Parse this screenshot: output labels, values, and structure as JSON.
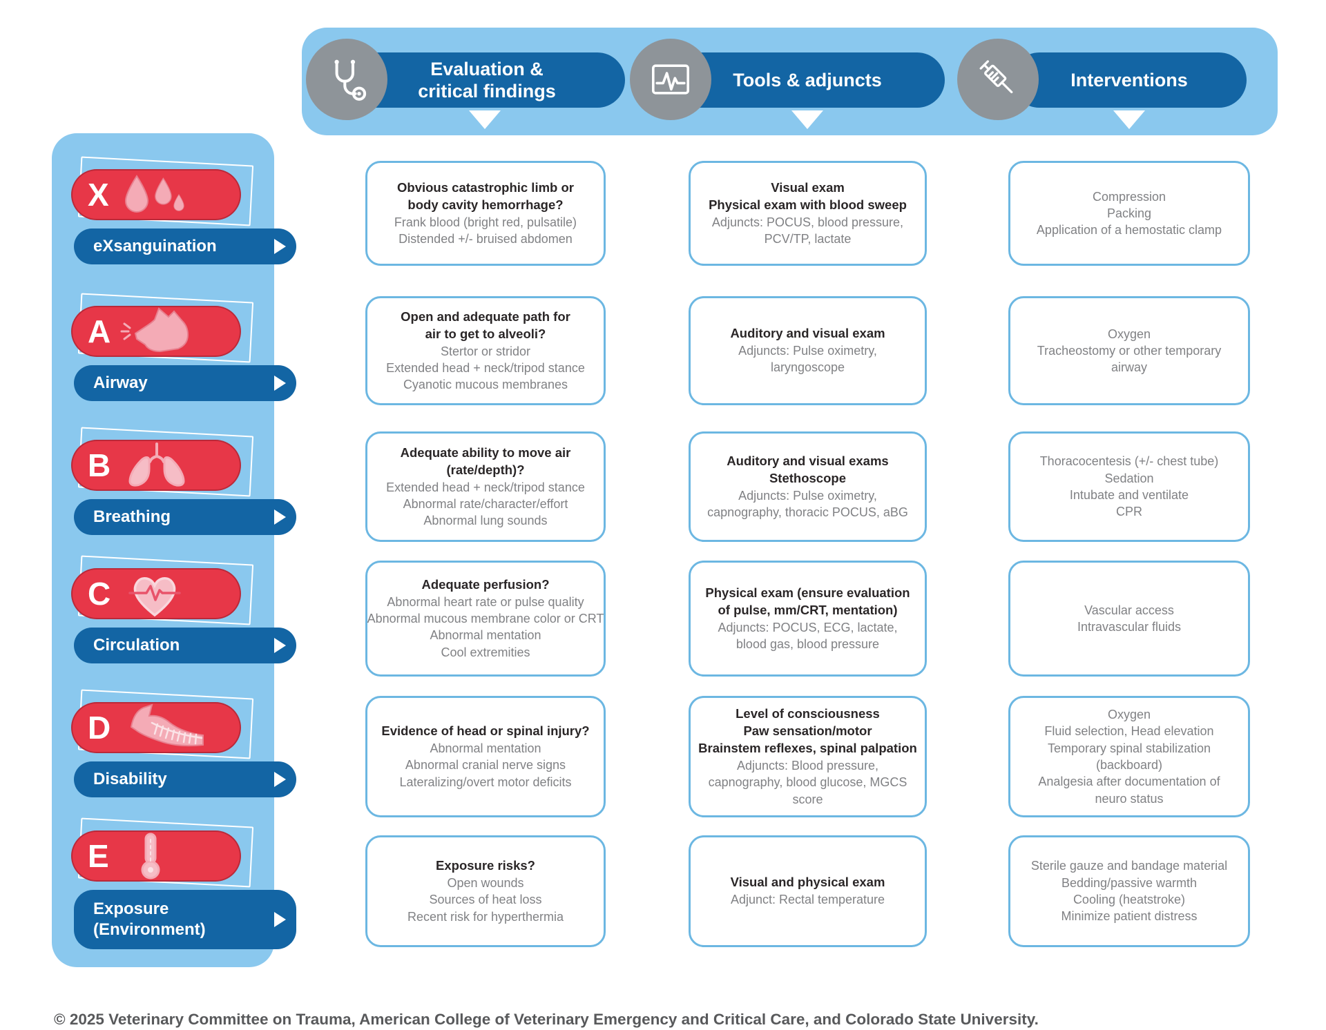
{
  "colors": {
    "light_blue": "#8AC8EE",
    "dark_blue": "#1365A4",
    "red": "#E73748",
    "pink": "#F4ABB6",
    "gray_circle": "#8E9499",
    "box_border": "#6CB7E2",
    "dark_text": "#2A2627",
    "gray_text": "#808184",
    "footer_text": "#58595B"
  },
  "header": {
    "columns": [
      {
        "icon": "stethoscope-icon",
        "label_lines": [
          "Evaluation &",
          "critical findings"
        ]
      },
      {
        "icon": "ecg-monitor-icon",
        "label_lines": [
          "Tools & adjuncts"
        ]
      },
      {
        "icon": "syringe-icon",
        "label_lines": [
          "Interventions"
        ]
      }
    ]
  },
  "sidebar": {
    "items": [
      {
        "letter": "X",
        "icon": "blood-drops-icon",
        "label_lines": [
          "eXsanguination"
        ]
      },
      {
        "letter": "A",
        "icon": "dog-bark-icon",
        "label_lines": [
          "Airway"
        ]
      },
      {
        "letter": "B",
        "icon": "lungs-icon",
        "label_lines": [
          "Breathing"
        ]
      },
      {
        "letter": "C",
        "icon": "heart-ecg-icon",
        "label_lines": [
          "Circulation"
        ]
      },
      {
        "letter": "D",
        "icon": "dog-spine-icon",
        "label_lines": [
          "Disability"
        ]
      },
      {
        "letter": "E",
        "icon": "thermometer-icon",
        "label_lines": [
          "Exposure",
          "(Environment)"
        ]
      }
    ]
  },
  "grid": {
    "rows": [
      {
        "key": "X",
        "cells": [
          {
            "bold": [
              "Obvious catastrophic limb or",
              "body cavity hemorrhage?"
            ],
            "gray": [
              "Frank blood (bright red, pulsatile)",
              "Distended +/- bruised abdomen"
            ]
          },
          {
            "bold": [
              "Visual exam",
              "Physical exam with blood sweep"
            ],
            "gray": [
              "Adjuncts: POCUS, blood pressure,",
              "PCV/TP, lactate"
            ]
          },
          {
            "bold": [],
            "gray": [
              "Compression",
              "Packing",
              "Application of a hemostatic clamp"
            ]
          }
        ]
      },
      {
        "key": "A",
        "cells": [
          {
            "bold": [
              "Open and adequate path for",
              "air to get to alveoli?"
            ],
            "gray": [
              "Stertor or stridor",
              "Extended head + neck/tripod stance",
              "Cyanotic mucous membranes"
            ]
          },
          {
            "bold": [
              "Auditory and visual exam"
            ],
            "gray": [
              "Adjuncts: Pulse oximetry,",
              "laryngoscope"
            ]
          },
          {
            "bold": [],
            "gray": [
              "Oxygen",
              "Tracheostomy or other temporary",
              "airway"
            ]
          }
        ]
      },
      {
        "key": "B",
        "cells": [
          {
            "bold": [
              "Adequate ability to move air",
              "(rate/depth)?"
            ],
            "gray": [
              "Extended head + neck/tripod stance",
              "Abnormal rate/character/effort",
              "Abnormal lung sounds"
            ]
          },
          {
            "bold": [
              "Auditory and visual exams",
              "Stethoscope"
            ],
            "gray": [
              "Adjuncts: Pulse oximetry,",
              "capnography, thoracic POCUS, aBG"
            ]
          },
          {
            "bold": [],
            "gray": [
              "Thoracocentesis (+/- chest tube)",
              "Sedation",
              "Intubate and ventilate",
              "CPR"
            ]
          }
        ]
      },
      {
        "key": "C",
        "cells": [
          {
            "bold": [
              "Adequate perfusion?"
            ],
            "gray": [
              "Abnormal heart rate or pulse quality",
              "Abnormal mucous membrane color or CRT",
              "Abnormal mentation",
              "Cool extremities"
            ]
          },
          {
            "bold": [
              "Physical exam (ensure evaluation",
              "of pulse, mm/CRT, mentation)"
            ],
            "gray": [
              "Adjuncts: POCUS, ECG, lactate,",
              "blood gas, blood pressure"
            ]
          },
          {
            "bold": [],
            "gray": [
              "Vascular access",
              "Intravascular fluids"
            ]
          }
        ]
      },
      {
        "key": "D",
        "cells": [
          {
            "bold": [
              "Evidence of head or spinal injury?"
            ],
            "gray": [
              "Abnormal mentation",
              "Abnormal cranial nerve signs",
              "Lateralizing/overt motor deficits"
            ]
          },
          {
            "bold": [
              "Level of consciousness",
              "Paw sensation/motor",
              "Brainstem reflexes, spinal palpation"
            ],
            "gray": [
              "Adjuncts: Blood pressure,",
              "capnography, blood glucose, MGCS",
              "score"
            ]
          },
          {
            "bold": [],
            "gray": [
              "Oxygen",
              "Fluid selection, Head elevation",
              "Temporary spinal stabilization",
              "(backboard)",
              "Analgesia after documentation of",
              "neuro status"
            ]
          }
        ]
      },
      {
        "key": "E",
        "cells": [
          {
            "bold": [
              "Exposure risks?"
            ],
            "gray": [
              "Open wounds",
              "Sources of heat loss",
              "Recent risk for hyperthermia"
            ]
          },
          {
            "bold": [
              "Visual and physical exam"
            ],
            "gray": [
              "Adjunct: Rectal temperature"
            ]
          },
          {
            "bold": [],
            "gray": [
              "Sterile gauze and bandage material",
              "Bedding/passive warmth",
              "Cooling (heatstroke)",
              "Minimize patient distress"
            ]
          }
        ]
      }
    ]
  },
  "footer": {
    "copyright": "© 2025 Veterinary Committee on Trauma, American College of Veterinary Emergency and Critical Care, and Colorado State University."
  }
}
